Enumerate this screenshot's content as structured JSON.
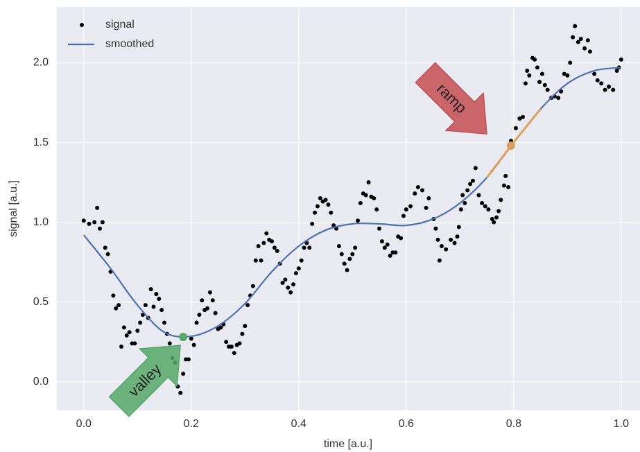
{
  "chart_data": {
    "type": "scatter",
    "xlabel": "time [a.u.]",
    "ylabel": "signal [a.u.]",
    "xlim": [
      -0.05,
      1.035
    ],
    "ylim": [
      -0.18,
      2.35
    ],
    "xticks": [
      {
        "value": 0,
        "label": "0.0"
      },
      {
        "value": 0.2,
        "label": "0.2"
      },
      {
        "value": 0.4,
        "label": "0.4"
      },
      {
        "value": 0.6,
        "label": "0.6"
      },
      {
        "value": 0.8,
        "label": "0.8"
      },
      {
        "value": 1,
        "label": "1.0"
      }
    ],
    "yticks": [
      {
        "value": 0,
        "label": "0.0"
      },
      {
        "value": 0.5,
        "label": "0.5"
      },
      {
        "value": 1,
        "label": "1.0"
      },
      {
        "value": 1.5,
        "label": "1.5"
      },
      {
        "value": 2,
        "label": "2.0"
      }
    ],
    "grid": true,
    "legend": "upper-left",
    "series": [
      {
        "name": "signal",
        "kind": "scatter",
        "color": "#000000",
        "x": [
          0,
          0.01,
          0.02,
          0.025,
          0.03,
          0.035,
          0.04,
          0.045,
          0.05,
          0.055,
          0.06,
          0.065,
          0.07,
          0.075,
          0.08,
          0.085,
          0.09,
          0.095,
          0.1,
          0.105,
          0.11,
          0.115,
          0.12,
          0.125,
          0.13,
          0.135,
          0.14,
          0.145,
          0.15,
          0.155,
          0.16,
          0.165,
          0.17,
          0.175,
          0.18,
          0.185,
          0.19,
          0.195,
          0.2,
          0.205,
          0.21,
          0.215,
          0.22,
          0.225,
          0.23,
          0.235,
          0.24,
          0.245,
          0.25,
          0.255,
          0.26,
          0.265,
          0.27,
          0.275,
          0.28,
          0.285,
          0.29,
          0.295,
          0.3,
          0.305,
          0.31,
          0.315,
          0.32,
          0.325,
          0.33,
          0.335,
          0.34,
          0.345,
          0.35,
          0.355,
          0.36,
          0.365,
          0.37,
          0.375,
          0.38,
          0.385,
          0.39,
          0.395,
          0.4,
          0.405,
          0.41,
          0.415,
          0.42,
          0.425,
          0.43,
          0.435,
          0.44,
          0.445,
          0.45,
          0.455,
          0.46,
          0.465,
          0.47,
          0.475,
          0.48,
          0.485,
          0.49,
          0.495,
          0.5,
          0.505,
          0.51,
          0.515,
          0.52,
          0.525,
          0.53,
          0.535,
          0.54,
          0.545,
          0.55,
          0.555,
          0.56,
          0.565,
          0.57,
          0.575,
          0.58,
          0.585,
          0.59,
          0.595,
          0.6,
          0.608,
          0.616,
          0.622,
          0.63,
          0.637,
          0.642,
          0.651,
          0.655,
          0.659,
          0.662,
          0.666,
          0.674,
          0.683,
          0.69,
          0.695,
          0.698,
          0.702,
          0.705,
          0.709,
          0.714,
          0.719,
          0.724,
          0.729,
          0.735,
          0.741,
          0.747,
          0.753,
          0.76,
          0.763,
          0.768,
          0.772,
          0.776,
          0.782,
          0.785,
          0.79,
          0.795,
          0.804,
          0.811,
          0.817,
          0.822,
          0.825,
          0.829,
          0.835,
          0.839,
          0.844,
          0.848,
          0.853,
          0.858,
          0.863,
          0.87,
          0.876,
          0.883,
          0.888,
          0.894,
          0.9,
          0.905,
          0.91,
          0.914,
          0.92,
          0.925,
          0.932,
          0.938,
          0.942,
          0.95,
          0.956,
          0.963,
          0.97,
          0.977,
          0.985,
          0.992,
          0.996,
          1.0
        ],
        "values": [
          1.01,
          0.99,
          1.0,
          1.09,
          0.96,
          1.0,
          0.84,
          0.8,
          0.69,
          0.54,
          0.46,
          0.48,
          0.22,
          0.34,
          0.29,
          0.31,
          0.24,
          0.24,
          0.32,
          0.37,
          0.42,
          0.48,
          0.4,
          0.58,
          0.47,
          0.55,
          0.52,
          0.45,
          0.37,
          0.3,
          0.24,
          0.15,
          0.12,
          -0.03,
          -0.07,
          0.05,
          0.14,
          0.14,
          0.27,
          0.23,
          0.37,
          0.42,
          0.51,
          0.45,
          0.46,
          0.56,
          0.51,
          0.43,
          0.33,
          0.34,
          0.36,
          0.25,
          0.22,
          0.22,
          0.18,
          0.23,
          0.24,
          0.3,
          0.35,
          0.48,
          0.54,
          0.6,
          0.76,
          0.85,
          0.76,
          0.87,
          0.93,
          0.89,
          0.88,
          0.84,
          0.82,
          0.74,
          0.62,
          0.64,
          0.59,
          0.56,
          0.61,
          0.68,
          0.71,
          0.76,
          0.84,
          0.87,
          0.84,
          0.99,
          1.06,
          1.1,
          1.15,
          1.13,
          1.14,
          1.11,
          1.06,
          0.98,
          0.96,
          0.85,
          0.8,
          0.74,
          0.7,
          0.77,
          0.8,
          0.84,
          1.01,
          1.12,
          1.18,
          1.17,
          1.25,
          1.16,
          1.15,
          1.08,
          0.96,
          0.88,
          0.84,
          0.86,
          0.79,
          0.81,
          0.81,
          0.91,
          0.9,
          1.04,
          1.08,
          1.1,
          1.18,
          1.22,
          1.2,
          1.09,
          1.15,
          1.02,
          0.96,
          0.89,
          0.76,
          0.85,
          0.83,
          0.89,
          0.87,
          0.91,
          0.97,
          1.08,
          1.17,
          1.12,
          1.2,
          1.24,
          1.26,
          1.34,
          1.17,
          1.12,
          1.1,
          1.08,
          1.02,
          1.0,
          1.03,
          1.07,
          1.14,
          1.23,
          1.29,
          1.22,
          1.51,
          1.59,
          1.65,
          1.66,
          1.87,
          1.95,
          1.92,
          2.03,
          2.02,
          1.97,
          1.88,
          1.93,
          1.86,
          1.83,
          1.78,
          1.79,
          1.78,
          1.82,
          1.93,
          1.92,
          2.0,
          2.16,
          2.23,
          2.13,
          2.15,
          2.09,
          2.14,
          2.07,
          1.93,
          1.89,
          1.87,
          1.83,
          1.85,
          1.83,
          1.95,
          1.97,
          2.02
        ]
      },
      {
        "name": "smoothed",
        "kind": "line",
        "color": "#4c72b0",
        "x": [
          0,
          0.05,
          0.1,
          0.15,
          0.2,
          0.25,
          0.3,
          0.35,
          0.4,
          0.45,
          0.5,
          0.55,
          0.6,
          0.65,
          0.7,
          0.75,
          0.8,
          0.85,
          0.9,
          0.95,
          1.0
        ],
        "values": [
          0.92,
          0.71,
          0.48,
          0.31,
          0.285,
          0.35,
          0.49,
          0.69,
          0.85,
          0.95,
          0.99,
          0.99,
          0.98,
          1.02,
          1.12,
          1.28,
          1.5,
          1.71,
          1.87,
          1.95,
          1.97
        ]
      }
    ],
    "annotations": [
      {
        "text": "valley",
        "x": 0.185,
        "y": 0.28,
        "color": "#55a868",
        "arrow_side": "lower-left"
      },
      {
        "text": "ramp",
        "x": 0.795,
        "y": 1.48,
        "color": "#c44e52",
        "arrow_side": "upper-left",
        "span": [
          0.75,
          0.85
        ],
        "span_color": "#dda15e"
      }
    ]
  }
}
